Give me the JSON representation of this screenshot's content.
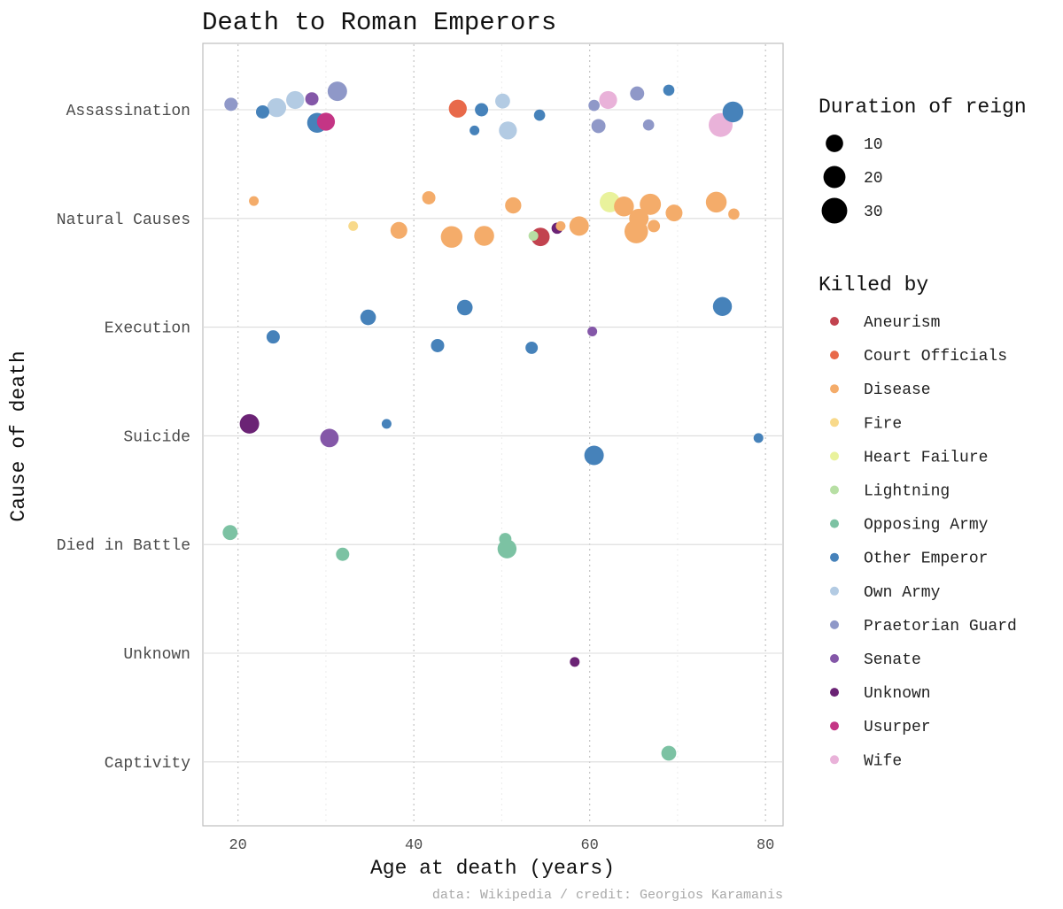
{
  "chart_data": {
    "type": "scatter",
    "title": "Death to Roman Emperors",
    "xlabel": "Age at death (years)",
    "ylabel": "Cause of death",
    "caption": "data: Wikipedia / credit: Georgios Karamanis",
    "xlim": [
      16,
      82
    ],
    "x_ticks": [
      20,
      40,
      60,
      80
    ],
    "y_categories": [
      "Assassination",
      "Natural Causes",
      "Execution",
      "Suicide",
      "Died in Battle",
      "Unknown",
      "Captivity"
    ],
    "grid": true,
    "size_legend": {
      "title": "Duration of reign",
      "entries": [
        {
          "label": "10",
          "value": 10
        },
        {
          "label": "20",
          "value": 20
        },
        {
          "label": "30",
          "value": 30
        }
      ]
    },
    "color_legend": {
      "title": "Killed by",
      "entries": [
        {
          "label": "Aneurism",
          "color": "#c2434f"
        },
        {
          "label": "Court Officials",
          "color": "#e8694a"
        },
        {
          "label": "Disease",
          "color": "#f4ac6a"
        },
        {
          "label": "Fire",
          "color": "#f8d98a"
        },
        {
          "label": "Heart Failure",
          "color": "#e9f29c"
        },
        {
          "label": "Lightning",
          "color": "#b7dfa4"
        },
        {
          "label": "Opposing Army",
          "color": "#7cc2a3"
        },
        {
          "label": "Other Emperor",
          "color": "#4682ba"
        },
        {
          "label": "Own Army",
          "color": "#b3cbe3"
        },
        {
          "label": "Praetorian Guard",
          "color": "#8f98c8"
        },
        {
          "label": "Senate",
          "color": "#8457a8"
        },
        {
          "label": "Unknown",
          "color": "#6b2375"
        },
        {
          "label": "Usurper",
          "color": "#c43585"
        },
        {
          "label": "Wife",
          "color": "#e9b2d9"
        }
      ]
    },
    "points": [
      {
        "x": 19.2,
        "cause": "Assassination",
        "jitter": 0.05,
        "reign": 4,
        "by": "Praetorian Guard"
      },
      {
        "x": 22.8,
        "cause": "Assassination",
        "jitter": -0.02,
        "reign": 4,
        "by": "Other Emperor"
      },
      {
        "x": 24.4,
        "cause": "Assassination",
        "jitter": 0.02,
        "reign": 13,
        "by": "Own Army"
      },
      {
        "x": 26.5,
        "cause": "Assassination",
        "jitter": 0.09,
        "reign": 11,
        "by": "Own Army"
      },
      {
        "x": 28.4,
        "cause": "Assassination",
        "jitter": 0.1,
        "reign": 4,
        "by": "Senate"
      },
      {
        "x": 31.3,
        "cause": "Assassination",
        "jitter": 0.17,
        "reign": 14,
        "by": "Praetorian Guard"
      },
      {
        "x": 29.0,
        "cause": "Assassination",
        "jitter": -0.12,
        "reign": 15,
        "by": "Other Emperor"
      },
      {
        "x": 30.0,
        "cause": "Assassination",
        "jitter": -0.11,
        "reign": 11,
        "by": "Usurper"
      },
      {
        "x": 45.0,
        "cause": "Assassination",
        "jitter": 0.01,
        "reign": 11,
        "by": "Court Officials"
      },
      {
        "x": 47.7,
        "cause": "Assassination",
        "jitter": 0.0,
        "reign": 4,
        "by": "Other Emperor"
      },
      {
        "x": 46.9,
        "cause": "Assassination",
        "jitter": -0.19,
        "reign": 1,
        "by": "Other Emperor"
      },
      {
        "x": 50.1,
        "cause": "Assassination",
        "jitter": 0.08,
        "reign": 6,
        "by": "Own Army"
      },
      {
        "x": 50.7,
        "cause": "Assassination",
        "jitter": -0.19,
        "reign": 11,
        "by": "Own Army"
      },
      {
        "x": 54.3,
        "cause": "Assassination",
        "jitter": -0.05,
        "reign": 2,
        "by": "Other Emperor"
      },
      {
        "x": 60.5,
        "cause": "Assassination",
        "jitter": 0.04,
        "reign": 2,
        "by": "Praetorian Guard"
      },
      {
        "x": 62.1,
        "cause": "Assassination",
        "jitter": 0.09,
        "reign": 11,
        "by": "Wife"
      },
      {
        "x": 61.0,
        "cause": "Assassination",
        "jitter": -0.15,
        "reign": 5,
        "by": "Praetorian Guard"
      },
      {
        "x": 65.4,
        "cause": "Assassination",
        "jitter": 0.15,
        "reign": 5,
        "by": "Praetorian Guard"
      },
      {
        "x": 66.7,
        "cause": "Assassination",
        "jitter": -0.14,
        "reign": 2,
        "by": "Praetorian Guard"
      },
      {
        "x": 69.0,
        "cause": "Assassination",
        "jitter": 0.18,
        "reign": 2,
        "by": "Other Emperor"
      },
      {
        "x": 74.9,
        "cause": "Assassination",
        "jitter": -0.14,
        "reign": 25,
        "by": "Wife"
      },
      {
        "x": 76.3,
        "cause": "Assassination",
        "jitter": -0.02,
        "reign": 17,
        "by": "Other Emperor"
      },
      {
        "x": 21.8,
        "cause": "Natural Causes",
        "jitter": 0.16,
        "reign": 1,
        "by": "Disease"
      },
      {
        "x": 33.1,
        "cause": "Natural Causes",
        "jitter": -0.07,
        "reign": 1,
        "by": "Fire"
      },
      {
        "x": 38.3,
        "cause": "Natural Causes",
        "jitter": -0.11,
        "reign": 9,
        "by": "Disease"
      },
      {
        "x": 41.7,
        "cause": "Natural Causes",
        "jitter": 0.19,
        "reign": 4,
        "by": "Disease"
      },
      {
        "x": 44.3,
        "cause": "Natural Causes",
        "jitter": -0.17,
        "reign": 19,
        "by": "Disease"
      },
      {
        "x": 48.0,
        "cause": "Natural Causes",
        "jitter": -0.16,
        "reign": 15,
        "by": "Disease"
      },
      {
        "x": 51.3,
        "cause": "Natural Causes",
        "jitter": 0.12,
        "reign": 8,
        "by": "Disease"
      },
      {
        "x": 53.6,
        "cause": "Natural Causes",
        "jitter": -0.16,
        "reign": 1,
        "by": "Lightning"
      },
      {
        "x": 54.4,
        "cause": "Natural Causes",
        "jitter": -0.17,
        "reign": 12,
        "by": "Aneurism"
      },
      {
        "x": 56.3,
        "cause": "Natural Causes",
        "jitter": -0.09,
        "reign": 2,
        "by": "Unknown"
      },
      {
        "x": 56.7,
        "cause": "Natural Causes",
        "jitter": -0.07,
        "reign": 1,
        "by": "Disease"
      },
      {
        "x": 58.8,
        "cause": "Natural Causes",
        "jitter": -0.07,
        "reign": 14,
        "by": "Disease"
      },
      {
        "x": 62.3,
        "cause": "Natural Causes",
        "jitter": 0.15,
        "reign": 16,
        "by": "Heart Failure"
      },
      {
        "x": 63.9,
        "cause": "Natural Causes",
        "jitter": 0.11,
        "reign": 15,
        "by": "Disease"
      },
      {
        "x": 65.3,
        "cause": "Natural Causes",
        "jitter": -0.12,
        "reign": 24,
        "by": "Disease"
      },
      {
        "x": 65.6,
        "cause": "Natural Causes",
        "jitter": 0.0,
        "reign": 14,
        "by": "Disease"
      },
      {
        "x": 66.9,
        "cause": "Natural Causes",
        "jitter": 0.13,
        "reign": 18,
        "by": "Disease"
      },
      {
        "x": 67.3,
        "cause": "Natural Causes",
        "jitter": -0.07,
        "reign": 3,
        "by": "Disease"
      },
      {
        "x": 69.6,
        "cause": "Natural Causes",
        "jitter": 0.05,
        "reign": 9,
        "by": "Disease"
      },
      {
        "x": 74.4,
        "cause": "Natural Causes",
        "jitter": 0.15,
        "reign": 17,
        "by": "Disease"
      },
      {
        "x": 76.4,
        "cause": "Natural Causes",
        "jitter": 0.04,
        "reign": 2,
        "by": "Disease"
      },
      {
        "x": 24.0,
        "cause": "Execution",
        "jitter": -0.09,
        "reign": 4,
        "by": "Other Emperor"
      },
      {
        "x": 34.8,
        "cause": "Execution",
        "jitter": 0.09,
        "reign": 7,
        "by": "Other Emperor"
      },
      {
        "x": 42.7,
        "cause": "Execution",
        "jitter": -0.17,
        "reign": 4,
        "by": "Other Emperor"
      },
      {
        "x": 45.8,
        "cause": "Execution",
        "jitter": 0.18,
        "reign": 7,
        "by": "Other Emperor"
      },
      {
        "x": 53.4,
        "cause": "Execution",
        "jitter": -0.19,
        "reign": 3,
        "by": "Other Emperor"
      },
      {
        "x": 60.3,
        "cause": "Execution",
        "jitter": -0.04,
        "reign": 1,
        "by": "Senate"
      },
      {
        "x": 75.1,
        "cause": "Execution",
        "jitter": 0.19,
        "reign": 13,
        "by": "Other Emperor"
      },
      {
        "x": 21.3,
        "cause": "Suicide",
        "jitter": 0.11,
        "reign": 14,
        "by": "Unknown"
      },
      {
        "x": 30.4,
        "cause": "Suicide",
        "jitter": -0.02,
        "reign": 12,
        "by": "Senate"
      },
      {
        "x": 36.9,
        "cause": "Suicide",
        "jitter": 0.11,
        "reign": 1,
        "by": "Other Emperor"
      },
      {
        "x": 60.5,
        "cause": "Suicide",
        "jitter": -0.18,
        "reign": 14,
        "by": "Other Emperor"
      },
      {
        "x": 79.2,
        "cause": "Suicide",
        "jitter": -0.02,
        "reign": 1,
        "by": "Other Emperor"
      },
      {
        "x": 19.1,
        "cause": "Died in Battle",
        "jitter": 0.11,
        "reign": 6,
        "by": "Opposing Army"
      },
      {
        "x": 31.9,
        "cause": "Died in Battle",
        "jitter": -0.09,
        "reign": 4,
        "by": "Opposing Army"
      },
      {
        "x": 50.4,
        "cause": "Died in Battle",
        "jitter": 0.05,
        "reign": 3,
        "by": "Opposing Army"
      },
      {
        "x": 50.6,
        "cause": "Died in Battle",
        "jitter": -0.04,
        "reign": 13,
        "by": "Opposing Army"
      },
      {
        "x": 58.3,
        "cause": "Unknown",
        "jitter": -0.08,
        "reign": 1,
        "by": "Unknown"
      },
      {
        "x": 69.0,
        "cause": "Captivity",
        "jitter": 0.08,
        "reign": 6,
        "by": "Opposing Army"
      }
    ]
  }
}
